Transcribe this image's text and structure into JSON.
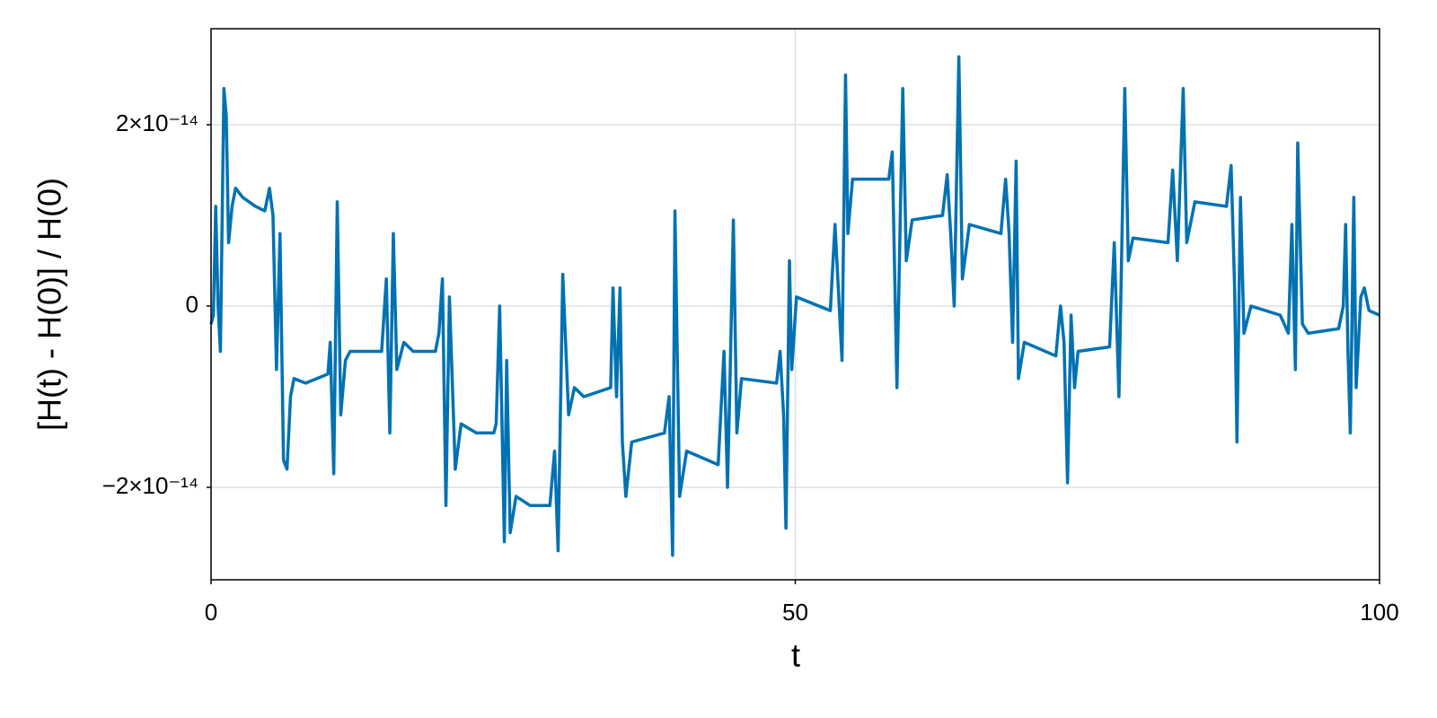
{
  "chart_data": {
    "type": "line",
    "xlabel": "t",
    "ylabel": "[H(t) - H(0)] / H(0)",
    "color": "#0072b2",
    "grid": true,
    "xlim": [
      0,
      100
    ],
    "xticks": [
      0,
      50,
      100
    ],
    "ylim": [
      -3.02e-14,
      3.06e-14
    ],
    "yticks": [
      {
        "value": -2e-14,
        "label": "−2×10⁻¹⁴"
      },
      0,
      {
        "value": 2e-14,
        "label": "2×10⁻¹⁴"
      }
    ],
    "x": [
      0,
      0.2,
      0.4,
      0.6,
      0.8,
      1.1,
      1.3,
      1.5,
      1.8,
      2.1,
      2.7,
      3.8,
      4.6,
      5.0,
      5.3,
      5.6,
      5.9,
      6.2,
      6.5,
      6.8,
      7.1,
      8.1,
      10.0,
      10.2,
      10.5,
      10.8,
      11.1,
      11.5,
      11.9,
      14.6,
      15.0,
      15.3,
      15.6,
      15.9,
      16.5,
      17.3,
      19.2,
      19.5,
      19.8,
      20.1,
      20.4,
      20.9,
      21.4,
      22.7,
      24.2,
      24.4,
      24.7,
      25.1,
      25.3,
      25.6,
      26.1,
      27.3,
      29.0,
      29.4,
      29.7,
      30.1,
      30.6,
      31.1,
      31.9,
      34.2,
      34.4,
      34.7,
      35.0,
      35.2,
      35.5,
      36.0,
      38.8,
      39.2,
      39.5,
      39.7,
      40.1,
      40.7,
      43.4,
      43.9,
      44.2,
      44.4,
      44.7,
      45.0,
      45.4,
      48.4,
      48.7,
      49.0,
      49.2,
      49.5,
      49.7,
      50.1,
      53.0,
      53.4,
      54.0,
      54.3,
      54.5,
      54.9,
      58.0,
      58.3,
      58.7,
      59.2,
      59.5,
      60.0,
      62.6,
      63.0,
      63.3,
      63.6,
      64.0,
      64.3,
      64.9,
      67.6,
      68.0,
      68.3,
      68.6,
      68.9,
      69.1,
      69.6,
      72.3,
      72.7,
      73.0,
      73.3,
      73.6,
      73.9,
      74.2,
      76.9,
      77.3,
      77.7,
      78.2,
      78.5,
      78.9,
      81.9,
      82.3,
      82.7,
      83.2,
      83.5,
      84.2,
      86.9,
      87.3,
      87.6,
      87.8,
      88.1,
      88.4,
      89.0,
      91.5,
      92.2,
      92.5,
      92.8,
      93.0,
      93.4,
      93.9,
      96.5,
      96.9,
      97.1,
      97.3,
      97.5,
      97.8,
      98.0,
      98.4,
      98.7,
      99.1,
      100
    ],
    "values": [
      -2e-15,
      -1e-15,
      1.1e-14,
      0,
      -5e-15,
      2.4e-14,
      2.1e-14,
      7e-15,
      1.1e-14,
      1.3e-14,
      1.2e-14,
      1.1e-14,
      1.05e-14,
      1.3e-14,
      1e-14,
      -7e-15,
      8e-15,
      -1.7e-14,
      -1.8e-14,
      -1e-14,
      -8e-15,
      -8.5e-15,
      -7.5e-15,
      -4e-15,
      -1.85e-14,
      1.15e-14,
      -1.2e-14,
      -6e-15,
      -5e-15,
      -5e-15,
      3e-15,
      -1.4e-14,
      8e-15,
      -7e-15,
      -4e-15,
      -5e-15,
      -5e-15,
      -3e-15,
      3e-15,
      -2.2e-14,
      1e-15,
      -1.8e-14,
      -1.3e-14,
      -1.4e-14,
      -1.4e-14,
      -1.3e-14,
      0,
      -2.6e-14,
      -6e-15,
      -2.5e-14,
      -2.1e-14,
      -2.2e-14,
      -2.2e-14,
      -1.6e-14,
      -2.7e-14,
      3.5e-15,
      -1.2e-14,
      -9e-15,
      -1e-14,
      -9e-15,
      2e-15,
      -1e-14,
      2e-15,
      -1.5e-14,
      -2.1e-14,
      -1.5e-14,
      -1.4e-14,
      -1e-14,
      -2.75e-14,
      1.05e-14,
      -2.1e-14,
      -1.6e-14,
      -1.75e-14,
      -5e-15,
      -2e-14,
      -9e-15,
      9.5e-15,
      -1.4e-14,
      -8e-15,
      -8.5e-15,
      -5e-15,
      -1.2e-14,
      -2.45e-14,
      5e-15,
      -7e-15,
      1e-15,
      -5e-16,
      9e-15,
      -6e-15,
      2.55e-14,
      8e-15,
      1.4e-14,
      1.4e-14,
      1.7e-14,
      -9e-15,
      2.4e-14,
      5e-15,
      9.5e-15,
      1e-14,
      1.45e-14,
      8e-15,
      0,
      2.75e-14,
      3e-15,
      9e-15,
      8e-15,
      1.4e-14,
      8e-15,
      -4e-15,
      1.6e-14,
      -8e-15,
      -4e-15,
      -5.5e-15,
      0,
      -4e-15,
      -1.95e-14,
      -1e-15,
      -9e-15,
      -5e-15,
      -4.5e-15,
      7e-15,
      -1e-14,
      2.4e-14,
      5e-15,
      7.5e-15,
      7e-15,
      1.5e-14,
      5e-15,
      2.4e-14,
      7e-15,
      1.15e-14,
      1.1e-14,
      1.55e-14,
      2e-15,
      -1.5e-14,
      1.2e-14,
      -3e-15,
      0,
      -1e-15,
      -3e-15,
      9e-15,
      -7e-15,
      1.8e-14,
      -2e-15,
      -3e-15,
      -2.5e-15,
      0,
      9e-15,
      -5e-15,
      -1.4e-14,
      1.2e-14,
      -9e-15,
      1e-15,
      2e-15,
      -5e-16,
      -1e-15
    ]
  }
}
